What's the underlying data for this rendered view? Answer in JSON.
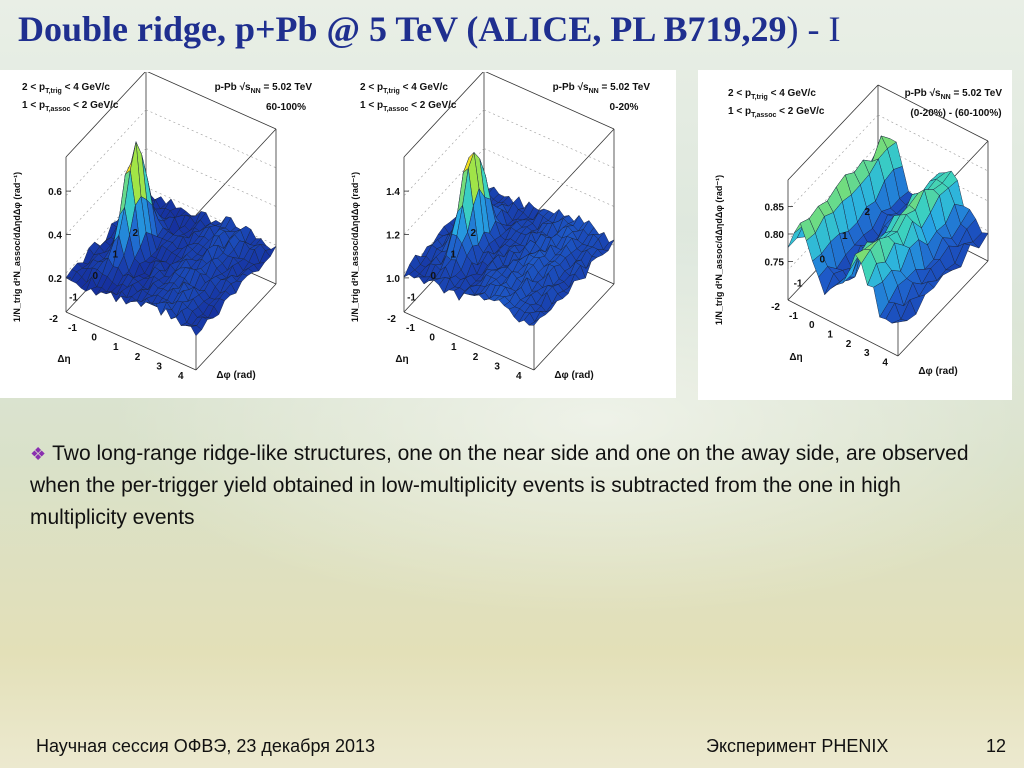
{
  "slide": {
    "title_main": "Double ridge, p+Pb @ 5 TeV (ALICE, PL B719,29",
    "title_close": ")",
    "title_suffix": " - I",
    "bullet_glyph": "❖",
    "bullet_text": "Two long-range ridge-like structures, one on the near side and one on the away side, are observed when the per-trigger yield obtained in low-multiplicity events is subtracted from the one in high multiplicity events",
    "footer_left": "Научная сессия ОФВЭ,  23 декабря 2013",
    "footer_mid": "Эксперимент PHENIX",
    "page_number": "12"
  },
  "figures": [
    {
      "trig": "2 < p",
      "trig_sub": "T,trig",
      "trig_end": " < 4 GeV/c",
      "assoc": "1 < p",
      "assoc_sub": "T,assoc",
      "assoc_end": " < 2 GeV/c",
      "system": "p-Pb √s",
      "system_sub": "NN",
      "system_end": " = 5.02 TeV",
      "centrality": "60-100%",
      "z_ticks": [
        "0.6",
        "0.4",
        "0.2"
      ],
      "eta_ticks": [
        "2",
        "1",
        "0",
        "-1",
        "-2"
      ],
      "phi_ticks": [
        "-1",
        "0",
        "1",
        "2",
        "3",
        "4"
      ],
      "eta_label": "Δη",
      "phi_label": "Δφ (rad)",
      "z_label": "1/N_trig d²N_assoc/dΔηdΔφ (rad⁻¹)"
    },
    {
      "trig": "2 < p",
      "trig_sub": "T,trig",
      "trig_end": " < 4 GeV/c",
      "assoc": "1 < p",
      "assoc_sub": "T,assoc",
      "assoc_end": " < 2 GeV/c",
      "system": "p-Pb √s",
      "system_sub": "NN",
      "system_end": " = 5.02 TeV",
      "centrality": "0-20%",
      "z_ticks": [
        "1.4",
        "1.2",
        "1.0"
      ],
      "eta_ticks": [
        "2",
        "1",
        "0",
        "-1",
        "-2"
      ],
      "phi_ticks": [
        "-1",
        "0",
        "1",
        "2",
        "3",
        "4"
      ],
      "eta_label": "Δη",
      "phi_label": "Δφ (rad)",
      "z_label": "1/N_trig d²N_assoc/dΔηdΔφ (rad⁻¹)"
    },
    {
      "trig": "2 < p",
      "trig_sub": "T,trig",
      "trig_end": " < 4 GeV/c",
      "assoc": "1 < p",
      "assoc_sub": "T,assoc",
      "assoc_end": " < 2 GeV/c",
      "system": "p-Pb √s",
      "system_sub": "NN",
      "system_end": " = 5.02 TeV",
      "centrality": "(0-20%) - (60-100%)",
      "z_ticks": [
        "0.85",
        "0.80",
        "0.75"
      ],
      "eta_ticks": [
        "2",
        "1",
        "0",
        "-1",
        "-2"
      ],
      "phi_ticks": [
        "-1",
        "0",
        "1",
        "2",
        "3",
        "4"
      ],
      "eta_label": "Δη",
      "phi_label": "Δφ (rad)",
      "z_label": "1/N_trig d²N_assoc/dΔηdΔφ (rad⁻¹)"
    }
  ]
}
